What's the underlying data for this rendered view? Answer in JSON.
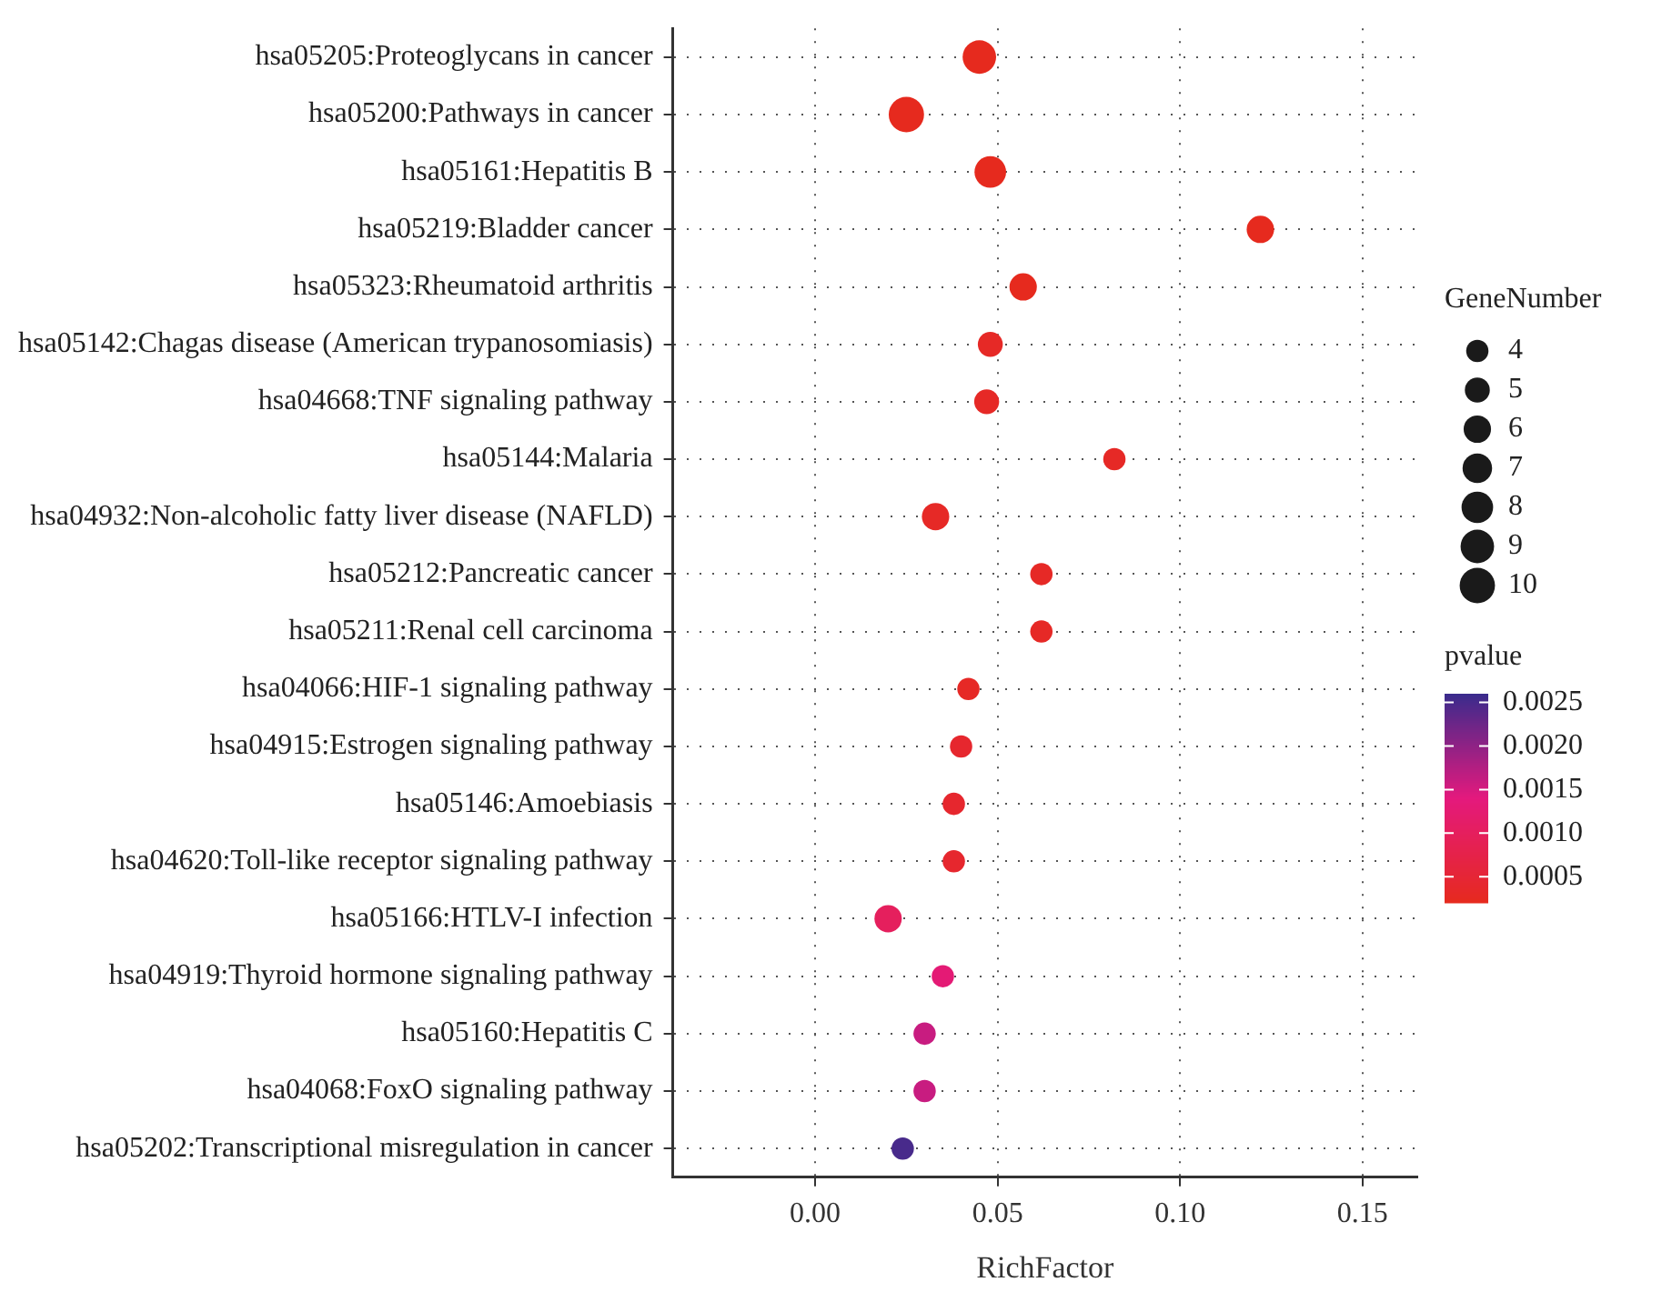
{
  "chart_data": {
    "type": "bubble",
    "orientation": "horizontal",
    "xlabel": "RichFactor",
    "legend_title": "GeneNumber",
    "clabel": "pvalue",
    "grid": true,
    "categories": [
      "hsa05205:Proteoglycans in cancer",
      "hsa05200:Pathways in cancer",
      "hsa05161:Hepatitis B",
      "hsa05219:Bladder cancer",
      "hsa05323:Rheumatoid arthritis",
      "hsa05142:Chagas disease (American trypanosomiasis)",
      "hsa04668:TNF signaling pathway",
      "hsa05144:Malaria",
      "hsa04932:Non-alcoholic fatty liver disease (NAFLD)",
      "hsa05212:Pancreatic cancer",
      "hsa05211:Renal cell carcinoma",
      "hsa04066:HIF-1 signaling pathway",
      "hsa04915:Estrogen signaling pathway",
      "hsa05146:Amoebiasis",
      "hsa04620:Toll-like receptor signaling pathway",
      "hsa05166:HTLV-I infection",
      "hsa04919:Thyroid hormone signaling pathway",
      "hsa05160:Hepatitis C",
      "hsa04068:FoxO signaling pathway",
      "hsa05202:Transcriptional misregulation in cancer"
    ],
    "values": [
      0.045,
      0.025,
      0.048,
      0.122,
      0.057,
      0.048,
      0.047,
      0.082,
      0.033,
      0.062,
      0.062,
      0.042,
      0.04,
      0.038,
      0.038,
      0.02,
      0.035,
      0.03,
      0.03,
      0.024
    ],
    "sizes": [
      9,
      10,
      8,
      6,
      6,
      5,
      5,
      4,
      6,
      4,
      4,
      4,
      4,
      4,
      4,
      6,
      4,
      4,
      4,
      4
    ],
    "size_legend": [
      4,
      5,
      6,
      7,
      8,
      9,
      10
    ],
    "cvalues": [
      0.0002,
      0.0002,
      0.0002,
      0.0002,
      0.0002,
      0.0003,
      0.0003,
      0.0003,
      0.0003,
      0.0003,
      0.0003,
      0.0003,
      0.0004,
      0.0004,
      0.0004,
      0.001,
      0.0013,
      0.0016,
      0.0016,
      0.0025
    ],
    "clim": [
      0.0002,
      0.0026
    ],
    "cticks": [
      0.0005,
      {
        "value": 0.001,
        "label": "0.0010"
      },
      0.0015,
      {
        "value": 0.002,
        "label": "0.0020"
      },
      0.0025
    ],
    "xlim": [
      -0.039,
      0.165
    ],
    "xticks": [
      {
        "value": 0,
        "label": "0.00"
      },
      0.05,
      {
        "value": 0.1,
        "label": "0.10"
      },
      0.15
    ]
  }
}
